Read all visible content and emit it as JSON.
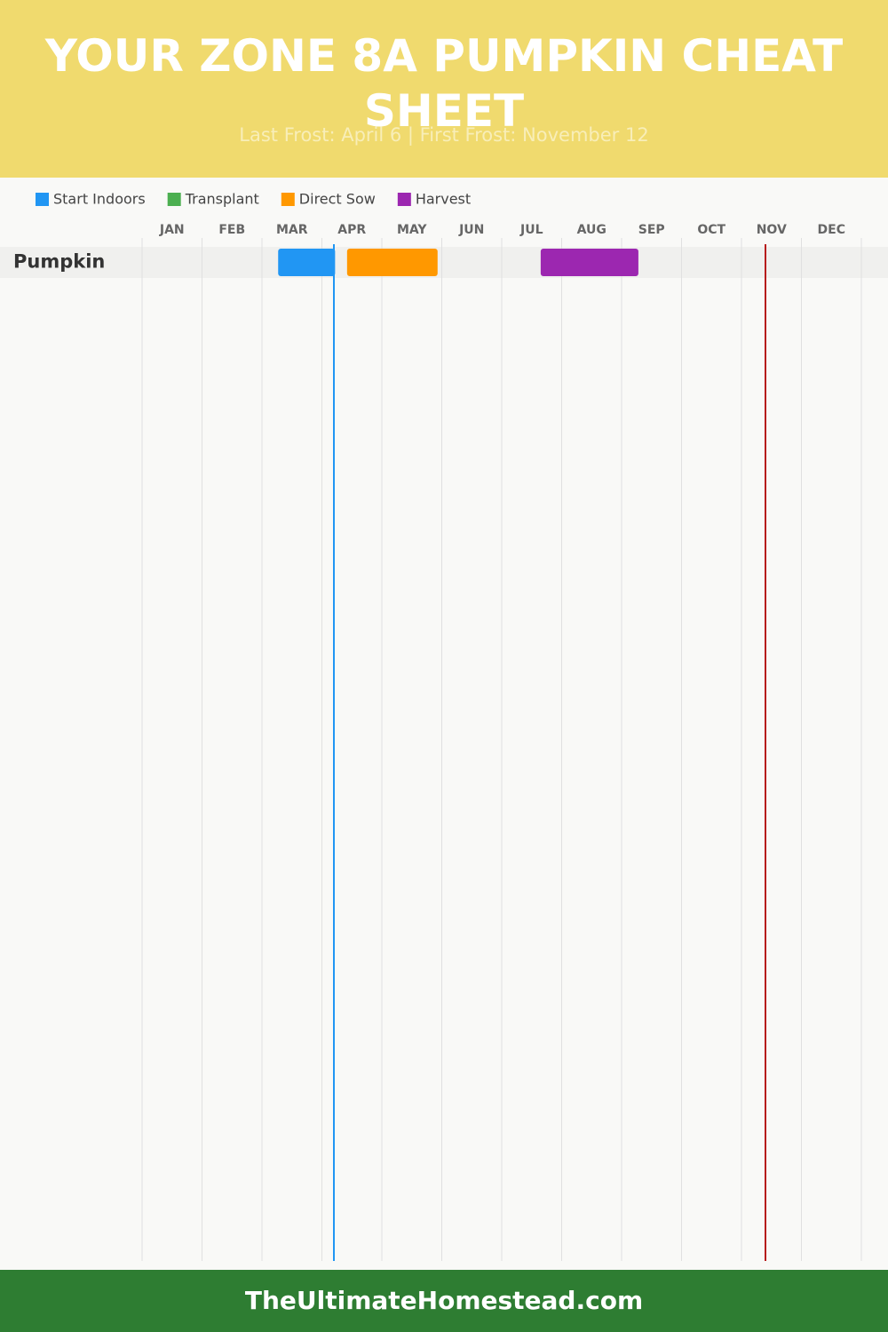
{
  "chart_data": {
    "type": "gantt",
    "title": "YOUR ZONE 8A PUMPKIN CHEAT SHEET",
    "subtitle": "Last Frost: April 6 | First Frost: November 12",
    "months": [
      "JAN",
      "FEB",
      "MAR",
      "APR",
      "MAY",
      "JUN",
      "JUL",
      "AUG",
      "SEP",
      "OCT",
      "NOV",
      "DEC"
    ],
    "xlim": [
      0,
      12
    ],
    "xticks": [
      0,
      1,
      2,
      3,
      4,
      5,
      6,
      7,
      8,
      9,
      10,
      11,
      12
    ],
    "grid": true,
    "categories": [
      "Pumpkin"
    ],
    "series": [
      {
        "name": "Start Indoors",
        "color": "#2196f3",
        "values": [
          [
            2.27,
            3.22
          ]
        ]
      },
      {
        "name": "Transplant",
        "color": "#4caf50",
        "values": [
          null
        ]
      },
      {
        "name": "Direct Sow",
        "color": "#ff9800",
        "values": [
          [
            3.42,
            4.93
          ]
        ]
      },
      {
        "name": "Harvest",
        "color": "#9c27b0",
        "values": [
          [
            6.65,
            8.28
          ]
        ]
      }
    ],
    "frost_lines": [
      {
        "value": 3.2,
        "color": "#2196f3"
      },
      {
        "value": 10.4,
        "color": "#b71c1c"
      }
    ],
    "footer": "TheUltimateHomestead.com"
  }
}
